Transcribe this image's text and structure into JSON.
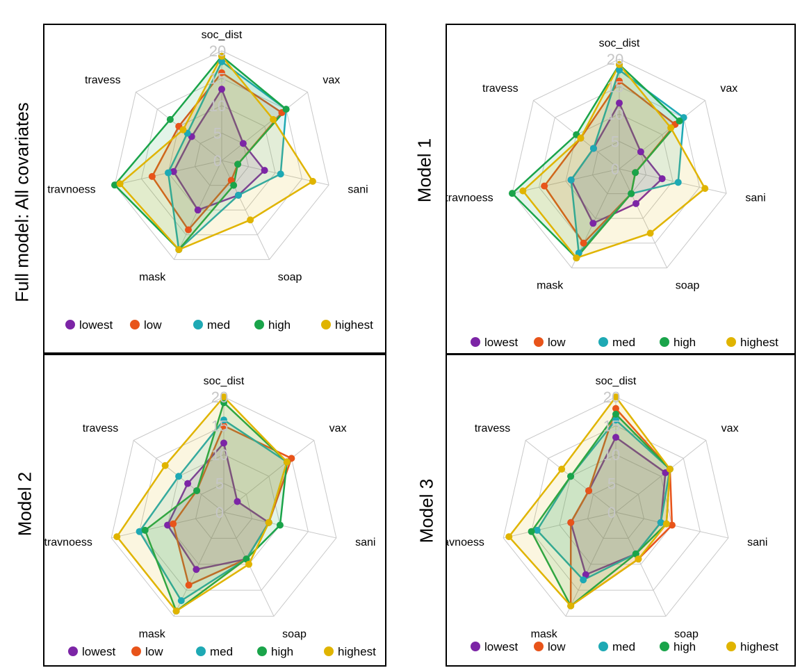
{
  "colors": {
    "lowest": "#7c25a6",
    "low": "#e8541a",
    "med": "#1ea9b4",
    "high": "#1aa44a",
    "highest": "#e0b400"
  },
  "chart_data": [
    {
      "type": "radar",
      "title": "Full model: All covariates",
      "axes": [
        "soc_dist",
        "vax",
        "sani",
        "soap",
        "mask",
        "travnoess",
        "travess"
      ],
      "rlim": [
        0,
        20
      ],
      "ticks": [
        "0",
        "5",
        "10",
        "15",
        "20"
      ],
      "grid": true,
      "legend": "bottom",
      "series": [
        {
          "name": "lowest",
          "values": [
            13,
            5,
            8,
            7,
            10,
            9,
            7
          ]
        },
        {
          "name": "low",
          "values": [
            16,
            14,
            3,
            4,
            14,
            13,
            10
          ]
        },
        {
          "name": "med",
          "values": [
            18,
            15,
            11,
            7,
            18,
            10,
            8
          ]
        },
        {
          "name": "high",
          "values": [
            19,
            15,
            3,
            5,
            18,
            20,
            12
          ]
        },
        {
          "name": "highest",
          "values": [
            19,
            12,
            17,
            12,
            18,
            19,
            9
          ]
        }
      ]
    },
    {
      "type": "radar",
      "title": "Model 1",
      "axes": [
        "soc_dist",
        "vax",
        "sani",
        "soap",
        "mask",
        "travnoess",
        "travess"
      ],
      "rlim": [
        0,
        20
      ],
      "ticks": [
        "0",
        "5",
        "10",
        "15",
        "20"
      ],
      "grid": true,
      "legend": "bottom",
      "series": [
        {
          "name": "lowest",
          "values": [
            12,
            5,
            8,
            7,
            11,
            9,
            6
          ]
        },
        {
          "name": "low",
          "values": [
            16,
            13,
            3,
            5,
            15,
            14,
            9
          ]
        },
        {
          "name": "med",
          "values": [
            18,
            15,
            11,
            5,
            17,
            9,
            6
          ]
        },
        {
          "name": "high",
          "values": [
            19,
            14,
            3,
            5,
            18,
            20,
            10
          ]
        },
        {
          "name": "highest",
          "values": [
            19,
            12,
            16,
            13,
            18,
            18,
            9
          ]
        }
      ]
    },
    {
      "type": "radar",
      "title": "Model 2",
      "axes": [
        "soc_dist",
        "vax",
        "sani",
        "soap",
        "mask",
        "travnoess",
        "travess"
      ],
      "rlim": [
        0,
        20
      ],
      "ticks": [
        "0",
        "5",
        "10",
        "15",
        "20"
      ],
      "grid": true,
      "legend": "bottom",
      "series": [
        {
          "name": "lowest",
          "values": [
            12,
            3,
            8,
            9,
            11,
            10,
            8
          ]
        },
        {
          "name": "low",
          "values": [
            15,
            15,
            8,
            9,
            14,
            9,
            6
          ]
        },
        {
          "name": "med",
          "values": [
            16,
            14,
            8,
            9,
            17,
            15,
            10
          ]
        },
        {
          "name": "high",
          "values": [
            19,
            14,
            10,
            9,
            19,
            14,
            6
          ]
        },
        {
          "name": "highest",
          "values": [
            20,
            14,
            8,
            10,
            19,
            19,
            13
          ]
        }
      ]
    },
    {
      "type": "radar",
      "title": "Model 3",
      "axes": [
        "soc_dist",
        "vax",
        "sani",
        "soap",
        "mask",
        "travnoess",
        "travess"
      ],
      "rlim": [
        0,
        20
      ],
      "ticks": [
        "0",
        "5",
        "10",
        "15",
        "20"
      ],
      "grid": true,
      "legend": "bottom",
      "series": [
        {
          "name": "lowest",
          "values": [
            13,
            11,
            8,
            8,
            12,
            8,
            6
          ]
        },
        {
          "name": "low",
          "values": [
            18,
            12,
            10,
            9,
            18,
            8,
            6
          ]
        },
        {
          "name": "med",
          "values": [
            16,
            12,
            8,
            8,
            13,
            14,
            10
          ]
        },
        {
          "name": "high",
          "values": [
            17,
            12,
            9,
            8,
            18,
            15,
            10
          ]
        },
        {
          "name": "highest",
          "values": [
            20,
            12,
            9,
            9,
            18,
            19,
            12
          ]
        }
      ]
    }
  ]
}
